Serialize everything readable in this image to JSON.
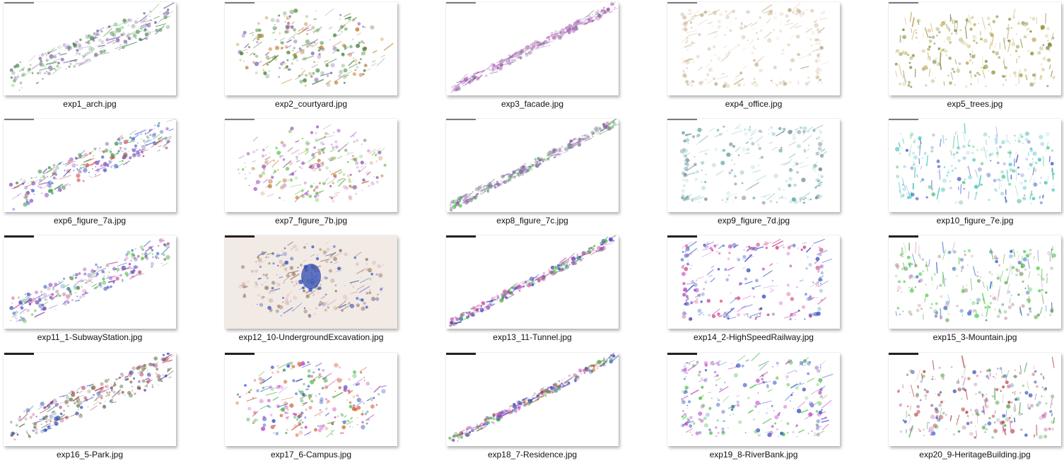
{
  "files": [
    {
      "name": "exp1_arch.jpg",
      "palette": [
        "#4a8a4a",
        "#6a4aa0",
        "#9fd0a0",
        "#b88ad0"
      ]
    },
    {
      "name": "exp2_courtyard.jpg",
      "palette": [
        "#3f7f2f",
        "#7a5ab0",
        "#c07a30",
        "#5a9a5a"
      ]
    },
    {
      "name": "exp3_facade.jpg",
      "palette": [
        "#9a4ab0",
        "#d0a0d0",
        "#7a6a9a",
        "#c080c0"
      ]
    },
    {
      "name": "exp4_office.jpg",
      "palette": [
        "#cdb89a",
        "#e0d0b8",
        "#b8a07a",
        "#ede2d0"
      ]
    },
    {
      "name": "exp5_trees.jpg",
      "palette": [
        "#8a8a2a",
        "#c0a050",
        "#6a7a2a",
        "#d0c080"
      ]
    },
    {
      "name": "exp6_figure_7a.jpg",
      "palette": [
        "#4a6ad0",
        "#d04a4a",
        "#40a050",
        "#8a50c0"
      ]
    },
    {
      "name": "exp7_figure_7b.jpg",
      "palette": [
        "#9a50c0",
        "#60c040",
        "#c08040",
        "#d0a0e0"
      ]
    },
    {
      "name": "exp8_figure_7c.jpg",
      "palette": [
        "#8a5aa0",
        "#50c050",
        "#b090c0",
        "#7a7a9a"
      ]
    },
    {
      "name": "exp9_figure_7d.jpg",
      "palette": [
        "#5aa0a0",
        "#a0d0d0",
        "#7a8a9a",
        "#c0e0e0"
      ]
    },
    {
      "name": "exp10_figure_7e.jpg",
      "palette": [
        "#40c0c0",
        "#4050c0",
        "#50c080",
        "#a0d0e0"
      ]
    },
    {
      "name": "exp11_1-SubwayStation.jpg",
      "palette": [
        "#7a4ab0",
        "#d050a0",
        "#4a6ad0",
        "#60c050"
      ]
    },
    {
      "name": "exp12_10-UndergroundExcavation.jpg",
      "palette": [
        "#8a6a50",
        "#b09080",
        "#3050c0",
        "#e0c0c0"
      ]
    },
    {
      "name": "exp13_11-Tunnel.jpg",
      "palette": [
        "#b040b0",
        "#3040c0",
        "#d050a0",
        "#40c040"
      ]
    },
    {
      "name": "exp14_2-HighSpeedRailway.jpg",
      "palette": [
        "#3050c0",
        "#c040c0",
        "#d04080",
        "#6080d0"
      ]
    },
    {
      "name": "exp15_3-Mountain.jpg",
      "palette": [
        "#60a050",
        "#3060c0",
        "#d0a0b0",
        "#50d050"
      ]
    },
    {
      "name": "exp16_5-Park.jpg",
      "palette": [
        "#5a7a4a",
        "#3050c0",
        "#c04060",
        "#8a6a50"
      ]
    },
    {
      "name": "exp17_6-Campus.jpg",
      "palette": [
        "#3050c0",
        "#c040c0",
        "#40b040",
        "#d06030"
      ]
    },
    {
      "name": "exp18_7-Residence.jpg",
      "palette": [
        "#3050c0",
        "#c06040",
        "#50b050",
        "#c040c0"
      ]
    },
    {
      "name": "exp19_8-RiverBank.jpg",
      "palette": [
        "#3050c0",
        "#c040c0",
        "#50c050",
        "#7080d0"
      ]
    },
    {
      "name": "exp20_9-HeritageBuilding.jpg",
      "palette": [
        "#b04040",
        "#3050c0",
        "#50a050",
        "#c060a0"
      ]
    }
  ]
}
